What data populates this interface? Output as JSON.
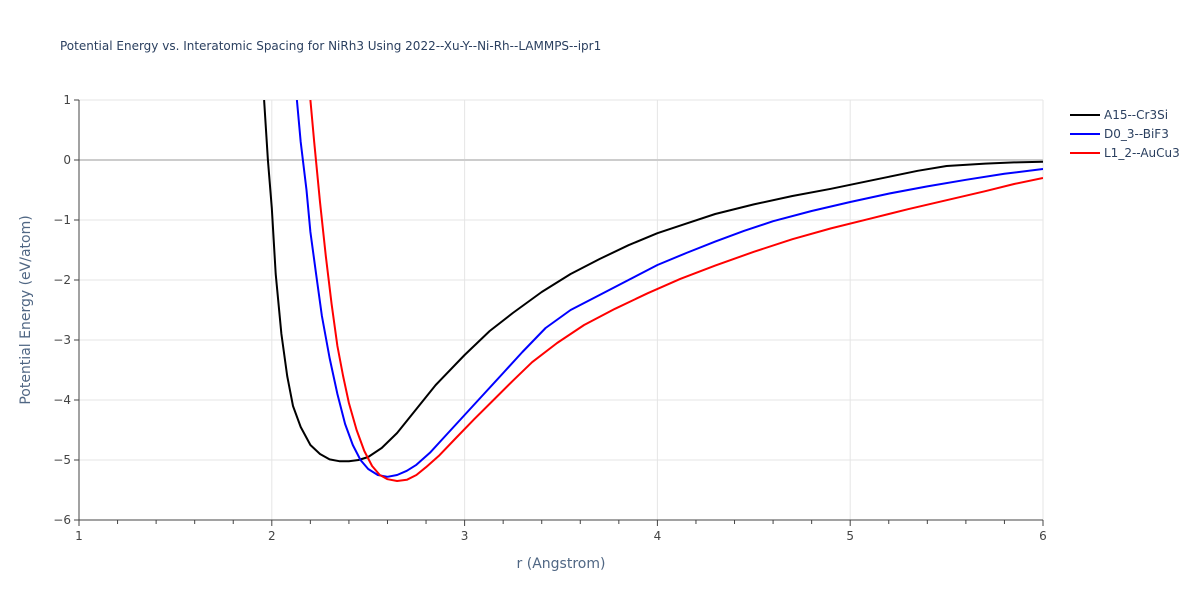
{
  "chart_data": {
    "type": "line",
    "title": "Potential Energy vs. Interatomic Spacing for NiRh3 Using 2022--Xu-Y--Ni-Rh--LAMMPS--ipr1",
    "xlabel": "r (Angstrom)",
    "ylabel": "Potential Energy (eV/atom)",
    "xlim": [
      1,
      6
    ],
    "ylim": [
      -6,
      1
    ],
    "xticks": [
      "1",
      "2",
      "3",
      "4",
      "5",
      "6"
    ],
    "yticks": [
      "1",
      "0",
      "−1",
      "−2",
      "−3",
      "−4",
      "−5",
      "−6"
    ],
    "grid": true,
    "legend_position": "top-right",
    "series": [
      {
        "name": "A15--Cr3Si",
        "color": "#000000",
        "x": [
          1.96,
          1.98,
          2.0,
          2.02,
          2.05,
          2.08,
          2.11,
          2.15,
          2.2,
          2.25,
          2.3,
          2.35,
          2.4,
          2.45,
          2.5,
          2.57,
          2.65,
          2.75,
          2.85,
          3.0,
          3.13,
          3.25,
          3.4,
          3.55,
          3.7,
          3.85,
          4.0,
          4.15,
          4.3,
          4.5,
          4.7,
          4.9,
          5.05,
          5.2,
          5.35,
          5.5,
          5.7,
          5.85,
          6.0
        ],
        "y": [
          1.0,
          0.0,
          -0.8,
          -1.9,
          -2.9,
          -3.6,
          -4.1,
          -4.45,
          -4.75,
          -4.9,
          -4.99,
          -5.02,
          -5.02,
          -5.0,
          -4.95,
          -4.8,
          -4.55,
          -4.15,
          -3.75,
          -3.25,
          -2.85,
          -2.55,
          -2.2,
          -1.9,
          -1.65,
          -1.42,
          -1.22,
          -1.06,
          -0.9,
          -0.74,
          -0.6,
          -0.48,
          -0.38,
          -0.28,
          -0.18,
          -0.1,
          -0.06,
          -0.04,
          -0.03
        ]
      },
      {
        "name": "D0_3--BiF3",
        "color": "#0000ff",
        "x": [
          2.13,
          2.15,
          2.18,
          2.2,
          2.23,
          2.26,
          2.3,
          2.34,
          2.38,
          2.42,
          2.46,
          2.5,
          2.55,
          2.6,
          2.65,
          2.7,
          2.75,
          2.82,
          2.9,
          3.0,
          3.1,
          3.2,
          3.3,
          3.42,
          3.55,
          3.7,
          3.85,
          4.0,
          4.15,
          4.3,
          4.45,
          4.6,
          4.8,
          5.0,
          5.2,
          5.4,
          5.6,
          5.8,
          6.0
        ],
        "y": [
          1.0,
          0.3,
          -0.5,
          -1.2,
          -1.9,
          -2.6,
          -3.3,
          -3.9,
          -4.4,
          -4.75,
          -5.0,
          -5.15,
          -5.25,
          -5.28,
          -5.25,
          -5.18,
          -5.08,
          -4.88,
          -4.6,
          -4.25,
          -3.9,
          -3.55,
          -3.2,
          -2.8,
          -2.5,
          -2.25,
          -2.0,
          -1.75,
          -1.55,
          -1.36,
          -1.18,
          -1.02,
          -0.85,
          -0.7,
          -0.56,
          -0.44,
          -0.33,
          -0.23,
          -0.15
        ]
      },
      {
        "name": "L1_2--AuCu3",
        "color": "#ff0000",
        "x": [
          2.2,
          2.22,
          2.25,
          2.28,
          2.31,
          2.34,
          2.37,
          2.4,
          2.44,
          2.48,
          2.52,
          2.56,
          2.6,
          2.65,
          2.7,
          2.75,
          2.8,
          2.87,
          2.95,
          3.05,
          3.15,
          3.25,
          3.35,
          3.48,
          3.62,
          3.78,
          3.95,
          4.12,
          4.3,
          4.5,
          4.7,
          4.9,
          5.1,
          5.3,
          5.5,
          5.7,
          5.85,
          6.0
        ],
        "y": [
          1.0,
          0.3,
          -0.7,
          -1.6,
          -2.4,
          -3.1,
          -3.6,
          -4.05,
          -4.5,
          -4.85,
          -5.1,
          -5.25,
          -5.32,
          -5.35,
          -5.33,
          -5.25,
          -5.12,
          -4.92,
          -4.65,
          -4.32,
          -4.0,
          -3.68,
          -3.37,
          -3.05,
          -2.75,
          -2.48,
          -2.22,
          -1.98,
          -1.76,
          -1.53,
          -1.32,
          -1.14,
          -0.98,
          -0.82,
          -0.67,
          -0.52,
          -0.4,
          -0.3
        ]
      }
    ]
  }
}
